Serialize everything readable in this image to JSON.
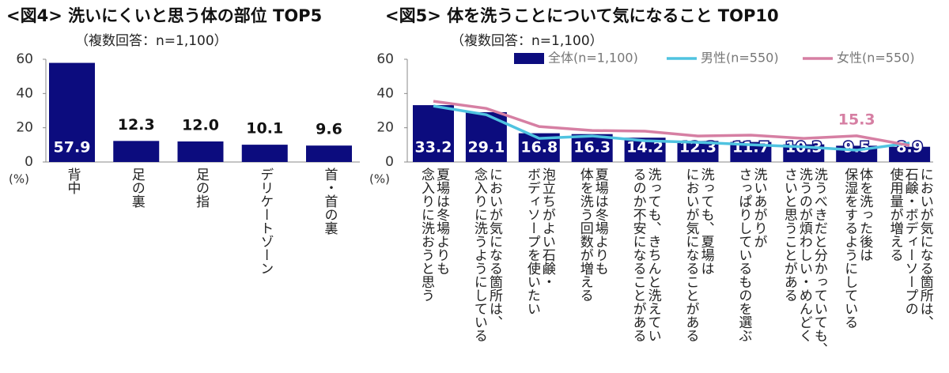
{
  "chart_data": [
    {
      "type": "bar",
      "title": "<図4> 洗いにくいと思う体の部位 TOP5",
      "subtitle": "（複数回答：n=1,100）",
      "y_label": "(%)",
      "categories": [
        "背中",
        "足の裏",
        "足の指",
        "デリケートゾーン",
        "首・首の裏"
      ],
      "values": [
        57.9,
        12.3,
        12.0,
        10.1,
        9.6
      ],
      "value_labels": [
        "57.9",
        "12.3",
        "12.0",
        "10.1",
        "9.6"
      ],
      "color": "#0c0c7e",
      "ylim": [
        0,
        60
      ],
      "yticks": [
        0,
        20,
        40,
        60
      ]
    },
    {
      "type": "bar",
      "title": "<図5> 体を洗うことについて気になること TOP10",
      "subtitle": "（複数回答：n=1,100）",
      "y_label": "(%)",
      "categories": [
        "夏場は冬場よりも\n念入りに洗おうと思う",
        "においが気になる箇所は、\n念入りに洗うようにしている",
        "泡立ちがよい石鹸・\nボディソープを使いたい",
        "夏場は冬場よりも\n体を洗う回数が増える",
        "洗っても、きちんと洗えてい\nるのか不安になることがある",
        "洗っても、夏場は\nにおいが気になることがある",
        "洗いあがりが\nさっぱりしているものを選ぶ",
        "洗うべきだと分かっていても、\n洗うのが煩わしい・めんどく\nさいと思うことがある",
        "体を洗った後は\n保湿をするようにしている",
        "においが気になる箇所は、\n石鹸・ボディーソープの\n使用量が増える"
      ],
      "series": [
        {
          "name": "全体(n=1,100)",
          "type": "bar",
          "color": "#0c0c7e",
          "values": [
            33.2,
            29.1,
            16.8,
            16.3,
            14.2,
            12.3,
            11.7,
            10.3,
            9.5,
            8.9
          ]
        },
        {
          "name": "男性(n=550)",
          "type": "line",
          "color": "#4fc3e0",
          "values": [
            32.7,
            27.6,
            13.8,
            15.2,
            12.4,
            11.5,
            10.1,
            8.8,
            6.9,
            11.1
          ]
        },
        {
          "name": "女性(n=550)",
          "type": "line",
          "color": "#d67fa3",
          "values": [
            35.5,
            31.3,
            20.7,
            18.4,
            18.0,
            15.2,
            15.7,
            13.8,
            15.3,
            9.7
          ],
          "value_labels": [
            null,
            null,
            null,
            null,
            null,
            null,
            null,
            null,
            "15.3",
            null
          ]
        }
      ],
      "legend": "top",
      "ylim": [
        0,
        60
      ],
      "yticks": [
        0,
        20,
        40,
        60
      ]
    }
  ]
}
